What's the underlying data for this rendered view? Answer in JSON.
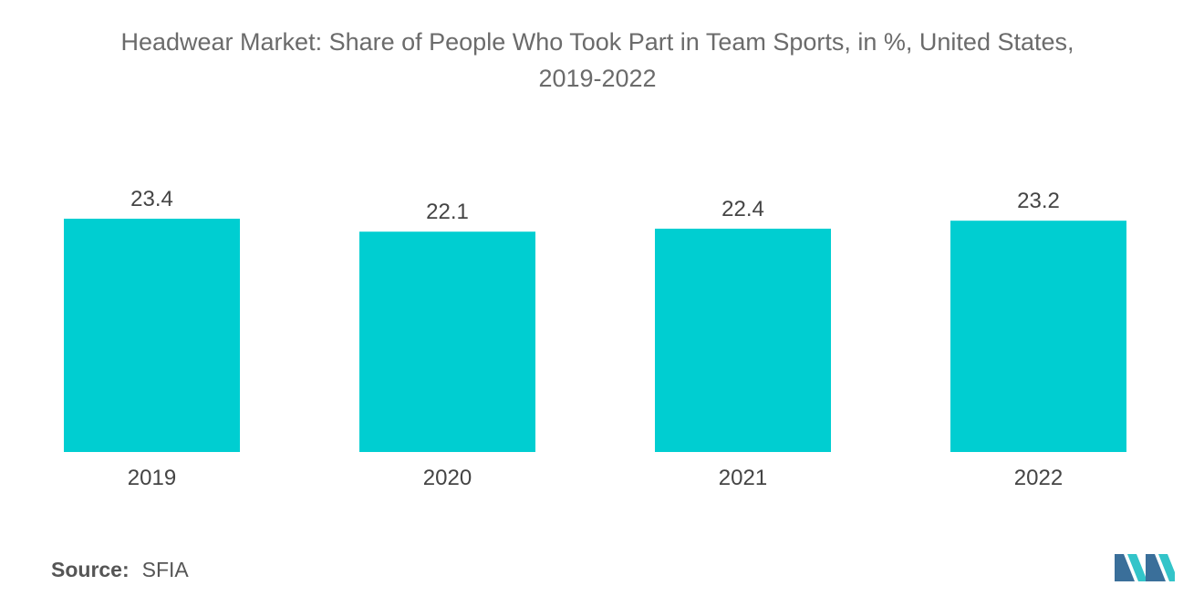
{
  "chart_data": {
    "type": "bar",
    "title_line1": "Headwear Market: Share of People Who Took Part in Team Sports, in %, United States,",
    "title_line2": "2019-2022",
    "categories": [
      "2019",
      "2020",
      "2021",
      "2022"
    ],
    "values": [
      23.4,
      22.1,
      22.4,
      23.2
    ],
    "value_labels": [
      "23.4",
      "22.1",
      "22.4",
      "23.2"
    ],
    "xlabel": "",
    "ylabel": "",
    "ylim": [
      0,
      23.4
    ],
    "grid": false,
    "legend": "none",
    "bar_color": "#00CED1"
  },
  "source": {
    "label": "Source:",
    "value": "SFIA"
  },
  "logo": {
    "icon": "mordor-intelligence-logo",
    "colors": [
      "#3a6f9a",
      "#33c4c9"
    ]
  }
}
